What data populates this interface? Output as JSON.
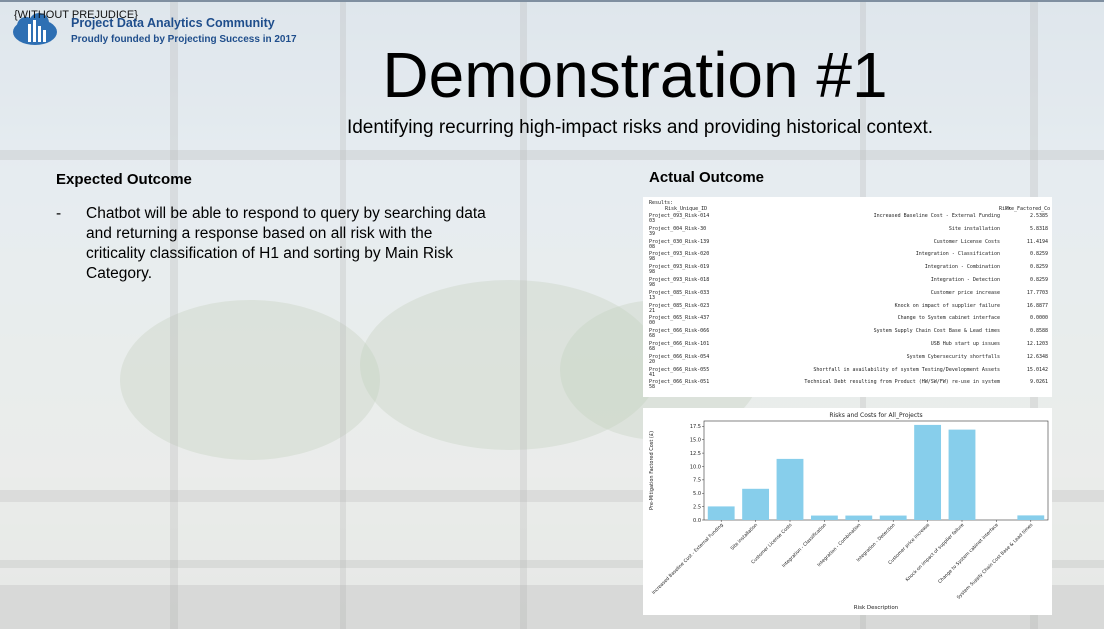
{
  "disclaimer": "{WITHOUT PREJUDICE}",
  "brand": {
    "name": "Project Data Analytics Community",
    "tagline": "Proudly founded by Projecting Success in 2017"
  },
  "slide": {
    "title": "Demonstration #1",
    "subtitle": "Identifying recurring high-impact risks and providing historical context."
  },
  "expected": {
    "heading": "Expected Outcome",
    "bullet_marker": "-",
    "bullets": [
      "Chatbot will be able to respond to query by searching data and returning a response based on all risk with the criticality classification of H1 and sorting by Main Risk Category."
    ]
  },
  "actual": {
    "heading": "Actual Outcome",
    "results": {
      "label": "Results:",
      "columns": [
        "Risk_Unique_ID",
        "Risk",
        "Pre_Factored_Co"
      ],
      "rows": [
        {
          "id": "Project_093_Risk-014",
          "wrap": "03",
          "risk": "Increased Baseline Cost - External Funding",
          "value": "2.5385"
        },
        {
          "id": "Project_004_Risk-30",
          "wrap": "39",
          "risk": "Site installation",
          "value": "5.8318"
        },
        {
          "id": "Project_030_Risk-139",
          "wrap": "08",
          "risk": "Customer License Costs",
          "value": "11.4194"
        },
        {
          "id": "Project_093_Risk-020",
          "wrap": "98",
          "risk": "Integration - Classification",
          "value": "0.8259"
        },
        {
          "id": "Project_093_Risk-019",
          "wrap": "98",
          "risk": "Integration -  Combination",
          "value": "0.8259"
        },
        {
          "id": "Project_093_Risk-018",
          "wrap": "98",
          "risk": "Integration - Detection",
          "value": "0.8259"
        },
        {
          "id": "Project_085_Risk-033",
          "wrap": "13",
          "risk": "Customer price increase",
          "value": "17.7703"
        },
        {
          "id": "Project_085_Risk-023",
          "wrap": "21",
          "risk": "Knock on impact of supplier failure",
          "value": "16.8877"
        },
        {
          "id": "Project_065_Risk-437",
          "wrap": "00",
          "risk": "Change to System cabinet interface",
          "value": "0.0000"
        },
        {
          "id": "Project_066_Risk-066",
          "wrap": "68",
          "risk": "System Supply Chain Cost Base & Lead times",
          "value": "0.8588"
        },
        {
          "id": "Project_066_Risk-101",
          "wrap": "68",
          "risk": "USB Hub start up issues",
          "value": "12.1203"
        },
        {
          "id": "Project_066_Risk-054",
          "wrap": "20",
          "risk": "System Cybersecurity shortfalls",
          "value": "12.6348"
        },
        {
          "id": "Project_066_Risk-055",
          "wrap": "41",
          "risk": "Shortfall in availability of system Testing/Development Assets",
          "value": "15.0142"
        },
        {
          "id": "Project_066_Risk-051",
          "wrap": "58",
          "risk": "Technical Debt resulting from Product (HW/SW/FW) re-use in system",
          "value": "9.0261"
        }
      ]
    }
  },
  "colors": {
    "bar": "#87ceeb",
    "brand_blue": "#1f4e8c"
  },
  "chart_data": {
    "type": "bar",
    "title": "Risks and Costs for All_Projects",
    "xlabel": "Risk Description",
    "ylabel": "Pre-Mitigation Factored Cost (£)",
    "ylim": [
      0,
      18.5
    ],
    "yticks": [
      "0.0",
      "2.5",
      "5.0",
      "7.5",
      "10.0",
      "12.5",
      "15.0",
      "17.5"
    ],
    "categories": [
      "Increased Baseline Cost - External Funding",
      "Site installation",
      "Customer License Costs",
      "Integration - Classification",
      "Integration -  Combination",
      "Integration - Detection",
      "Customer price increase",
      "Knock on impact of supplier failure",
      "Change to System cabinet interface",
      "System Supply Chain Cost Base & Lead times"
    ],
    "values": [
      2.54,
      5.83,
      11.42,
      0.83,
      0.83,
      0.83,
      17.77,
      16.89,
      0.0,
      0.86
    ],
    "grid": false,
    "legend": "none"
  }
}
